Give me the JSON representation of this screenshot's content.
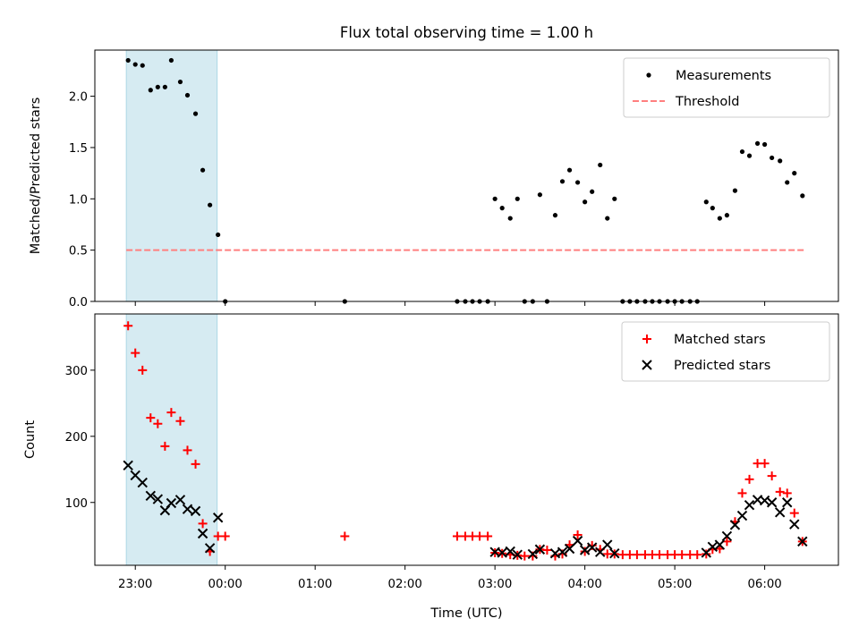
{
  "figure": {
    "title": "Flux total observing time = 1.00 h",
    "xlabel": "Time (UTC)"
  },
  "chart_data": [
    {
      "type": "scatter",
      "title": "Flux total observing time = 1.00 h",
      "ylabel": "Matched/Predicted stars",
      "xlabel": "",
      "x_unit": "hours relative to 00:00 UTC (23:00 = -1)",
      "xlim": [
        -1.45,
        6.82
      ],
      "ylim": [
        0.0,
        2.45
      ],
      "y_ticks": [
        "0.0",
        "0.5",
        "1.0",
        "1.5",
        "2.0"
      ],
      "highlight_span": [
        -1.1,
        -0.09
      ],
      "legend": {
        "position": "top-right",
        "entries": [
          "Measurements",
          "Threshold"
        ]
      },
      "threshold": {
        "name": "Threshold",
        "value": 0.5,
        "x_range": [
          -1.1,
          6.45
        ],
        "color": "#ff7f7f",
        "style": "dashed"
      },
      "series": [
        {
          "name": "Measurements",
          "color": "#000000",
          "marker": "dot",
          "points": [
            [
              -1.08,
              2.35
            ],
            [
              -1.0,
              2.31
            ],
            [
              -0.92,
              2.3
            ],
            [
              -0.83,
              2.06
            ],
            [
              -0.75,
              2.09
            ],
            [
              -0.67,
              2.09
            ],
            [
              -0.6,
              2.35
            ],
            [
              -0.5,
              2.14
            ],
            [
              -0.42,
              2.01
            ],
            [
              -0.33,
              1.83
            ],
            [
              -0.25,
              1.28
            ],
            [
              -0.17,
              0.94
            ],
            [
              -0.08,
              0.65
            ],
            [
              0.0,
              0.0
            ],
            [
              1.33,
              0.0
            ],
            [
              2.58,
              0.0
            ],
            [
              2.67,
              0.0
            ],
            [
              2.75,
              0.0
            ],
            [
              2.83,
              0.0
            ],
            [
              2.92,
              0.0
            ],
            [
              3.0,
              1.0
            ],
            [
              3.08,
              0.91
            ],
            [
              3.17,
              0.81
            ],
            [
              3.25,
              1.0
            ],
            [
              3.33,
              0.0
            ],
            [
              3.42,
              0.0
            ],
            [
              3.5,
              1.04
            ],
            [
              3.58,
              0.0
            ],
            [
              3.67,
              0.84
            ],
            [
              3.75,
              1.17
            ],
            [
              3.83,
              1.28
            ],
            [
              3.92,
              1.16
            ],
            [
              4.0,
              0.97
            ],
            [
              4.08,
              1.07
            ],
            [
              4.17,
              1.33
            ],
            [
              4.25,
              0.81
            ],
            [
              4.33,
              1.0
            ],
            [
              4.42,
              0.0
            ],
            [
              4.5,
              0.0
            ],
            [
              4.58,
              0.0
            ],
            [
              4.67,
              0.0
            ],
            [
              4.75,
              0.0
            ],
            [
              4.83,
              0.0
            ],
            [
              4.92,
              0.0
            ],
            [
              5.0,
              0.0
            ],
            [
              5.08,
              0.0
            ],
            [
              5.17,
              0.0
            ],
            [
              5.25,
              0.0
            ],
            [
              5.35,
              0.97
            ],
            [
              5.42,
              0.91
            ],
            [
              5.5,
              0.81
            ],
            [
              5.58,
              0.84
            ],
            [
              5.67,
              1.08
            ],
            [
              5.75,
              1.46
            ],
            [
              5.83,
              1.42
            ],
            [
              5.92,
              1.54
            ],
            [
              6.0,
              1.53
            ],
            [
              6.08,
              1.4
            ],
            [
              6.17,
              1.37
            ],
            [
              6.25,
              1.16
            ],
            [
              6.33,
              1.25
            ],
            [
              6.42,
              1.03
            ]
          ]
        }
      ]
    },
    {
      "type": "scatter",
      "title": "",
      "ylabel": "Count",
      "xlabel": "Time (UTC)",
      "xlim": [
        -1.45,
        6.82
      ],
      "ylim": [
        5,
        385
      ],
      "y_ticks": [
        "100",
        "200",
        "300"
      ],
      "x_ticks": [
        "23:00",
        "00:00",
        "01:00",
        "02:00",
        "03:00",
        "04:00",
        "05:00",
        "06:00"
      ],
      "highlight_span": [
        -1.1,
        -0.09
      ],
      "legend": {
        "position": "top-right",
        "entries": [
          "Matched stars",
          "Predicted stars"
        ]
      },
      "series": [
        {
          "name": "Matched stars",
          "color": "#ff0000",
          "marker": "plus",
          "points": [
            [
              -1.08,
              367
            ],
            [
              -1.0,
              326
            ],
            [
              -0.92,
              300
            ],
            [
              -0.83,
              228
            ],
            [
              -0.75,
              219
            ],
            [
              -0.67,
              185
            ],
            [
              -0.6,
              236
            ],
            [
              -0.5,
              223
            ],
            [
              -0.42,
              179
            ],
            [
              -0.33,
              158
            ],
            [
              -0.25,
              68
            ],
            [
              -0.17,
              26
            ],
            [
              -0.08,
              49
            ],
            [
              0.0,
              49
            ],
            [
              1.33,
              49
            ],
            [
              2.58,
              49
            ],
            [
              2.67,
              49
            ],
            [
              2.75,
              49
            ],
            [
              2.83,
              49
            ],
            [
              2.92,
              49
            ],
            [
              3.0,
              24
            ],
            [
              3.08,
              23
            ],
            [
              3.17,
              21
            ],
            [
              3.25,
              20
            ],
            [
              3.33,
              19
            ],
            [
              3.42,
              19
            ],
            [
              3.5,
              29
            ],
            [
              3.58,
              28
            ],
            [
              3.67,
              19
            ],
            [
              3.75,
              22
            ],
            [
              3.83,
              36
            ],
            [
              3.92,
              51
            ],
            [
              4.0,
              26
            ],
            [
              4.08,
              35
            ],
            [
              4.17,
              29
            ],
            [
              4.25,
              22
            ],
            [
              4.33,
              22
            ],
            [
              4.42,
              21
            ],
            [
              4.5,
              21
            ],
            [
              4.58,
              21
            ],
            [
              4.67,
              21
            ],
            [
              4.75,
              21
            ],
            [
              4.83,
              21
            ],
            [
              4.92,
              21
            ],
            [
              5.0,
              21
            ],
            [
              5.08,
              21
            ],
            [
              5.17,
              21
            ],
            [
              5.25,
              21
            ],
            [
              5.35,
              22
            ],
            [
              5.42,
              29
            ],
            [
              5.5,
              30
            ],
            [
              5.58,
              41
            ],
            [
              5.67,
              71
            ],
            [
              5.75,
              114
            ],
            [
              5.83,
              135
            ],
            [
              5.92,
              159
            ],
            [
              6.0,
              159
            ],
            [
              6.08,
              140
            ],
            [
              6.17,
              116
            ],
            [
              6.25,
              114
            ],
            [
              6.33,
              84
            ],
            [
              6.42,
              41
            ]
          ]
        },
        {
          "name": "Predicted stars",
          "color": "#000000",
          "marker": "cross",
          "points": [
            [
              -1.08,
              156
            ],
            [
              -1.0,
              141
            ],
            [
              -0.92,
              130
            ],
            [
              -0.83,
              110
            ],
            [
              -0.75,
              105
            ],
            [
              -0.67,
              88
            ],
            [
              -0.6,
              99
            ],
            [
              -0.5,
              104
            ],
            [
              -0.42,
              90
            ],
            [
              -0.33,
              87
            ],
            [
              -0.25,
              53
            ],
            [
              -0.17,
              31
            ],
            [
              -0.08,
              77
            ],
            [
              3.0,
              25
            ],
            [
              3.08,
              24
            ],
            [
              3.17,
              26
            ],
            [
              3.25,
              21
            ],
            [
              3.42,
              22
            ],
            [
              3.5,
              29
            ],
            [
              3.67,
              23
            ],
            [
              3.75,
              25
            ],
            [
              3.83,
              30
            ],
            [
              3.92,
              42
            ],
            [
              4.0,
              28
            ],
            [
              4.08,
              32
            ],
            [
              4.17,
              25
            ],
            [
              4.25,
              36
            ],
            [
              4.33,
              23
            ],
            [
              5.35,
              24
            ],
            [
              5.42,
              33
            ],
            [
              5.5,
              36
            ],
            [
              5.58,
              49
            ],
            [
              5.67,
              66
            ],
            [
              5.75,
              80
            ],
            [
              5.83,
              96
            ],
            [
              5.92,
              104
            ],
            [
              6.0,
              103
            ],
            [
              6.08,
              100
            ],
            [
              6.17,
              85
            ],
            [
              6.25,
              100
            ],
            [
              6.33,
              67
            ],
            [
              6.42,
              41
            ]
          ]
        }
      ]
    }
  ]
}
